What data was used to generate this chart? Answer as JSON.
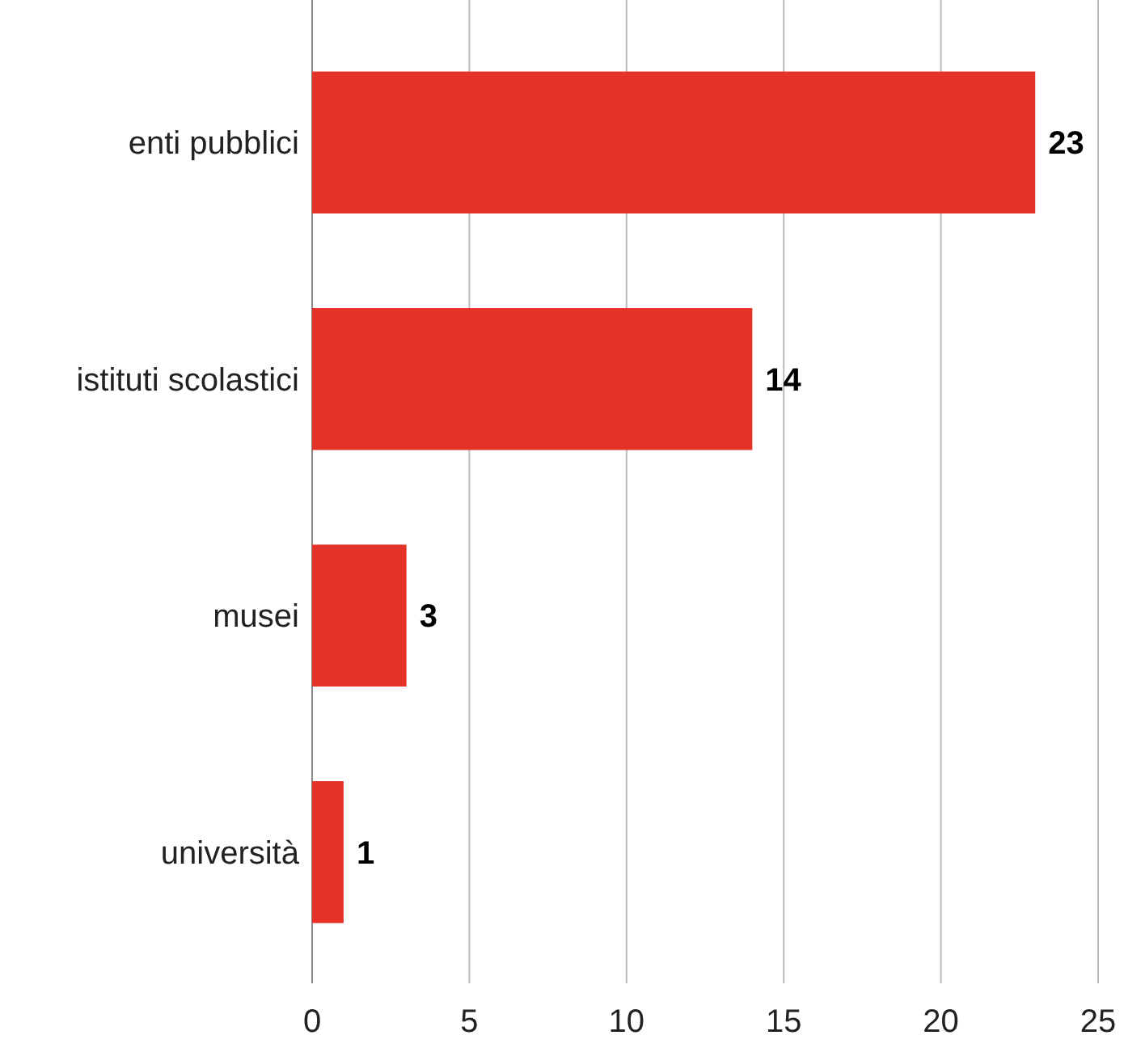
{
  "chart_data": {
    "type": "bar",
    "orientation": "horizontal",
    "categories": [
      "enti pubblici",
      "istituti scolastici",
      "musei",
      "università"
    ],
    "values": [
      23,
      14,
      3,
      1
    ],
    "color": "#e5332a",
    "xlim": [
      0,
      25
    ],
    "xticks": [
      0,
      5,
      10,
      15,
      20,
      25
    ],
    "grid": "x",
    "data_labels": true
  }
}
